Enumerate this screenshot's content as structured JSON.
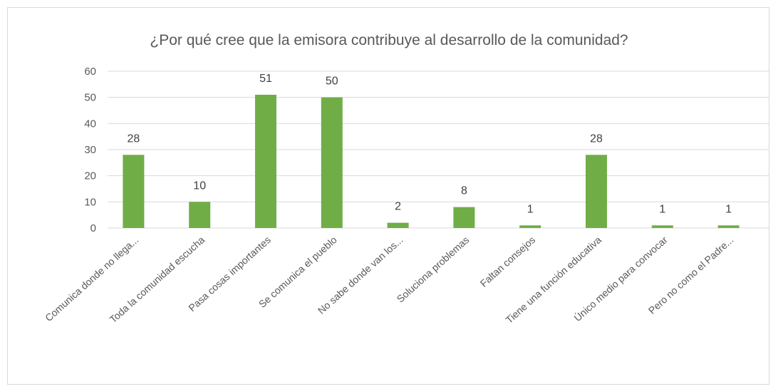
{
  "chart_data": {
    "type": "bar",
    "title": "¿Por qué cree que la emisora contribuye al desarrollo de la comunidad?",
    "categories": [
      "Comunica donde no llega...",
      "Toda la comunidad escucha",
      "Pasa cosas importantes",
      "Se comunica el pueblo",
      "No sabe donde van los...",
      "Soluciona problemas",
      "Faltan consejos",
      "Tiene una función educativa",
      "Único medio para convocar",
      "Pero no como el Padre..."
    ],
    "values": [
      28,
      10,
      51,
      50,
      2,
      8,
      1,
      28,
      1,
      1
    ],
    "ylim": [
      0,
      60
    ],
    "yticks": [
      0,
      10,
      20,
      30,
      40,
      50,
      60
    ],
    "grid": true,
    "legend": "none",
    "bar_color": "#70ad47"
  }
}
